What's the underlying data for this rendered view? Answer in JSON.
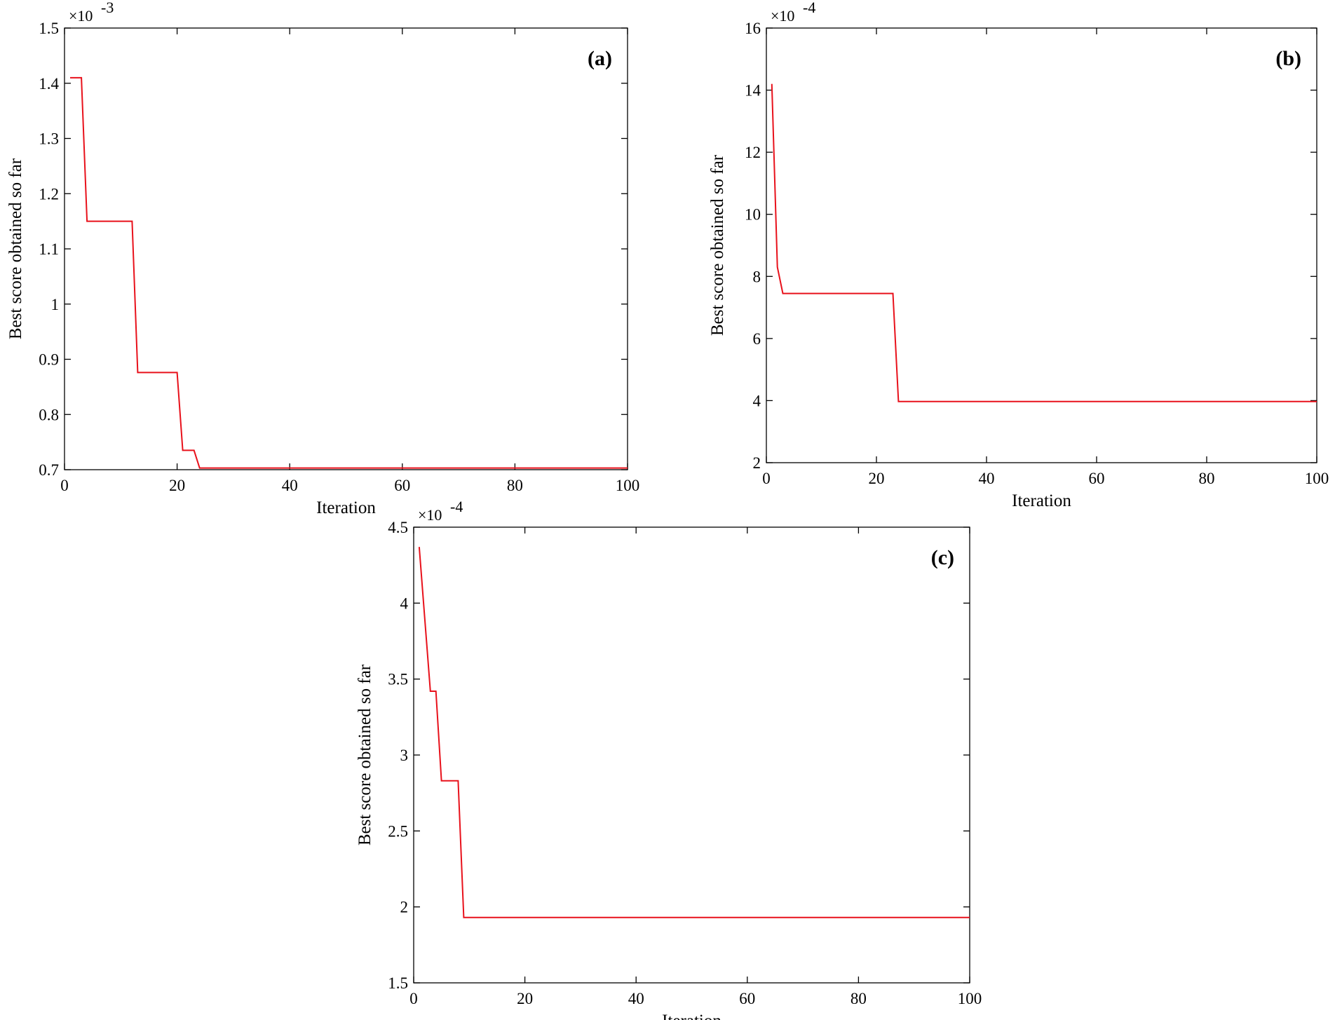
{
  "chart_data": [
    {
      "type": "line",
      "panel_label": "(a)",
      "xlabel": "Iteration",
      "ylabel": "Best score obtained so far",
      "y_exponent_label": "×10",
      "y_exponent_power": "-3",
      "xlim": [
        0,
        100
      ],
      "ylim": [
        0.7,
        1.5
      ],
      "xticks": [
        0,
        20,
        40,
        60,
        80,
        100
      ],
      "xtick_labels": [
        "0",
        "20",
        "40",
        "60",
        "80",
        "100"
      ],
      "yticks": [
        0.7,
        0.8,
        0.9,
        1.0,
        1.1,
        1.2,
        1.3,
        1.4,
        1.5
      ],
      "ytick_labels": [
        "0.7",
        "0.8",
        "0.9",
        "1",
        "1.1",
        "1.2",
        "1.3",
        "1.4",
        "1.5"
      ],
      "grid": false,
      "line_color": "#e8111b",
      "series": [
        {
          "x": [
            1,
            3,
            4,
            12,
            13,
            20,
            21,
            23,
            24,
            100
          ],
          "y": [
            1.41,
            1.41,
            1.15,
            1.15,
            0.876,
            0.876,
            0.735,
            0.735,
            0.703,
            0.703
          ]
        }
      ]
    },
    {
      "type": "line",
      "panel_label": "(b)",
      "xlabel": "Iteration",
      "ylabel": "Best score obtained so far",
      "y_exponent_label": "×10",
      "y_exponent_power": "-4",
      "xlim": [
        0,
        100
      ],
      "ylim": [
        2,
        16
      ],
      "xticks": [
        0,
        20,
        40,
        60,
        80,
        100
      ],
      "xtick_labels": [
        "0",
        "20",
        "40",
        "60",
        "80",
        "100"
      ],
      "yticks": [
        2,
        4,
        6,
        8,
        10,
        12,
        14,
        16
      ],
      "ytick_labels": [
        "2",
        "4",
        "6",
        "8",
        "10",
        "12",
        "14",
        "16"
      ],
      "grid": false,
      "line_color": "#e8111b",
      "series": [
        {
          "x": [
            1,
            2,
            3,
            23,
            24,
            100
          ],
          "y": [
            14.2,
            8.3,
            7.45,
            7.45,
            3.97,
            3.97
          ]
        }
      ]
    },
    {
      "type": "line",
      "panel_label": "(c)",
      "xlabel": "Iteration",
      "ylabel": "Best score obtained so far",
      "y_exponent_label": "×10",
      "y_exponent_power": "-4",
      "xlim": [
        0,
        100
      ],
      "ylim": [
        1.5,
        4.5
      ],
      "xticks": [
        0,
        20,
        40,
        60,
        80,
        100
      ],
      "xtick_labels": [
        "0",
        "20",
        "40",
        "60",
        "80",
        "100"
      ],
      "yticks": [
        1.5,
        2,
        2.5,
        3,
        3.5,
        4,
        4.5
      ],
      "ytick_labels": [
        "1.5",
        "2",
        "2.5",
        "3",
        "3.5",
        "4",
        "4.5"
      ],
      "grid": false,
      "line_color": "#e8111b",
      "series": [
        {
          "x": [
            1,
            3,
            4,
            5,
            8,
            9,
            100
          ],
          "y": [
            4.37,
            3.42,
            3.42,
            2.83,
            2.83,
            1.93,
            1.93
          ]
        }
      ]
    }
  ]
}
